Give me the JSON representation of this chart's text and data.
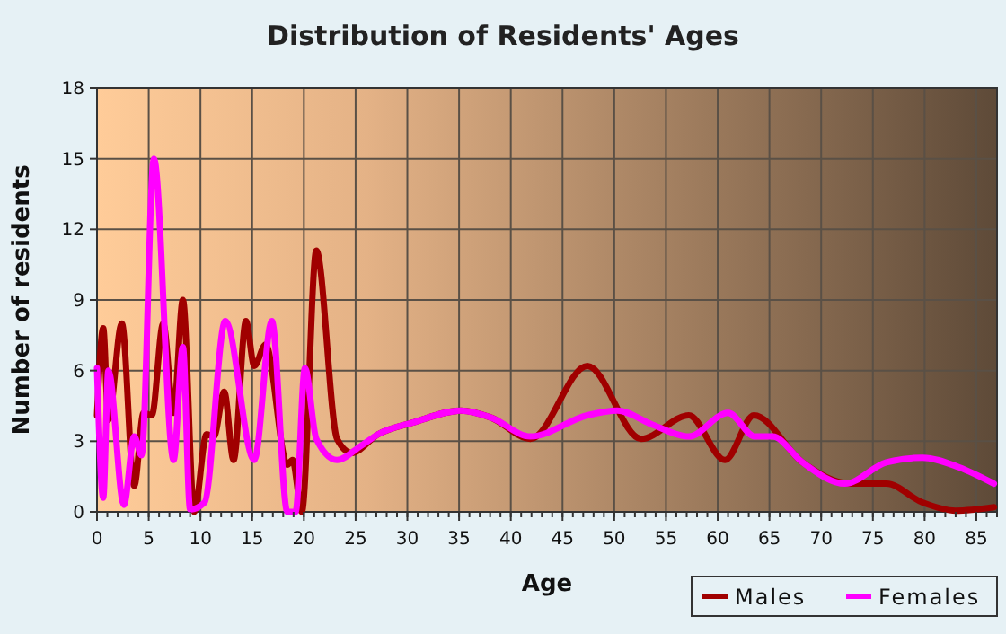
{
  "chart_data": {
    "type": "line",
    "title": "Distribution of Residents' Ages",
    "xlabel": "Age",
    "ylabel": "Number of residents",
    "xlim": [
      0,
      87
    ],
    "xticks": [
      0,
      5,
      10,
      15,
      20,
      25,
      30,
      35,
      40,
      45,
      50,
      55,
      60,
      65,
      70,
      75,
      80,
      85
    ],
    "ylim": [
      0,
      18
    ],
    "yticks": [
      0,
      3,
      6,
      9,
      12,
      15,
      18
    ],
    "grid": true,
    "legend": "bottom right",
    "marker": "none",
    "line_style": "solid",
    "series": [
      {
        "name": "Males",
        "color": "#a00000",
        "x": [
          0,
          0.6,
          1.1,
          2.4,
          3.6,
          4.5,
          5.3,
          6.4,
          7.4,
          8.3,
          9.4,
          10.6,
          11.3,
          12.3,
          13.2,
          14.4,
          15.2,
          16.3,
          18.4,
          18.9,
          19.8,
          21.2,
          23.2,
          24.6,
          27.2,
          30.6,
          35.2,
          38.1,
          41.9,
          47.4,
          52.6,
          57.2,
          60.7,
          63.5,
          68.2,
          72.8,
          76.3,
          79.8,
          83,
          86.7
        ],
        "values": [
          4.1,
          7.8,
          3.9,
          8.0,
          1.1,
          4.2,
          4.1,
          8.0,
          4.2,
          9.0,
          0,
          3.3,
          3.2,
          5.1,
          2.2,
          8.1,
          6.2,
          7.1,
          2.0,
          2.2,
          0,
          11.1,
          3.1,
          2.5,
          3.3,
          3.8,
          4.3,
          4.0,
          3.1,
          6.2,
          3.1,
          4.1,
          2.2,
          4.1,
          2.1,
          1.2,
          1.2,
          0.4,
          0.05,
          0.2
        ]
      },
      {
        "name": "Females",
        "color": "#ff00ff",
        "x": [
          0,
          0.6,
          1.1,
          2.6,
          3.6,
          4.3,
          5.5,
          7.4,
          8.3,
          9.0,
          10.4,
          12.4,
          15.2,
          16.9,
          18.4,
          19.2,
          20.1,
          21.2,
          23.2,
          25.5,
          27.2,
          30.6,
          35.2,
          38.1,
          41.9,
          47.4,
          50.3,
          53.7,
          57.2,
          61,
          63.6,
          65.3,
          68.2,
          72.3,
          76.3,
          79.8,
          83.3,
          86.7
        ],
        "values": [
          6.1,
          0.6,
          6.0,
          0.3,
          3.2,
          2.4,
          15.0,
          2.2,
          7.0,
          0.1,
          0.4,
          8.1,
          2.2,
          8.1,
          0,
          0,
          6.1,
          3.1,
          2.2,
          2.8,
          3.3,
          3.8,
          4.3,
          4.0,
          3.2,
          4.1,
          4.3,
          3.7,
          3.2,
          4.2,
          3.2,
          3.2,
          2.1,
          1.2,
          2.1,
          2.3,
          1.9,
          1.2
        ]
      }
    ]
  }
}
